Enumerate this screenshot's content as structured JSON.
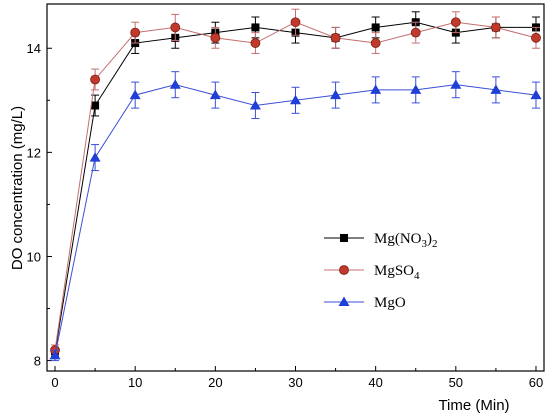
{
  "chart_data": {
    "type": "line",
    "xlabel": "Time (Min)",
    "ylabel": "DO concentration (mg/L)",
    "xlim": [
      -1,
      61
    ],
    "ylim": [
      7.8,
      14.85
    ],
    "x_ticks": [
      0,
      10,
      20,
      30,
      40,
      50,
      60
    ],
    "y_ticks": [
      8,
      10,
      12,
      14
    ],
    "grid": false,
    "legend_position": "right-middle",
    "x": [
      0,
      5,
      10,
      15,
      20,
      25,
      30,
      35,
      40,
      45,
      50,
      55,
      60
    ],
    "series": [
      {
        "name": "Mg(NO3)2",
        "name_base": "Mg(NO",
        "name_sub1": "3",
        "name_mid": ")",
        "name_sub2": "2",
        "color": "#000000",
        "marker": "square",
        "values": [
          8.15,
          12.9,
          14.1,
          14.2,
          14.3,
          14.4,
          14.3,
          14.2,
          14.4,
          14.5,
          14.3,
          14.4,
          14.4
        ],
        "error": [
          0.1,
          0.2,
          0.2,
          0.2,
          0.2,
          0.2,
          0.2,
          0.2,
          0.2,
          0.2,
          0.2,
          0.2,
          0.2
        ]
      },
      {
        "name": "MgSO4",
        "name_base": "MgSO",
        "name_sub1": "4",
        "color": "#c0392b",
        "line_color": "#c46f6f",
        "marker": "circle",
        "values": [
          8.2,
          13.4,
          14.3,
          14.4,
          14.2,
          14.1,
          14.5,
          14.2,
          14.1,
          14.3,
          14.5,
          14.4,
          14.2
        ],
        "error": [
          0.1,
          0.2,
          0.2,
          0.25,
          0.2,
          0.2,
          0.25,
          0.2,
          0.2,
          0.2,
          0.2,
          0.2,
          0.2
        ]
      },
      {
        "name": "MgO",
        "color": "#1f3fd6",
        "line_color": "#3a4fd8",
        "marker": "triangle",
        "values": [
          8.1,
          11.9,
          13.1,
          13.3,
          13.1,
          12.9,
          13.0,
          13.1,
          13.2,
          13.2,
          13.3,
          13.2,
          13.1
        ],
        "error": [
          0.1,
          0.25,
          0.25,
          0.25,
          0.25,
          0.25,
          0.25,
          0.25,
          0.25,
          0.25,
          0.25,
          0.25,
          0.25
        ]
      }
    ]
  }
}
